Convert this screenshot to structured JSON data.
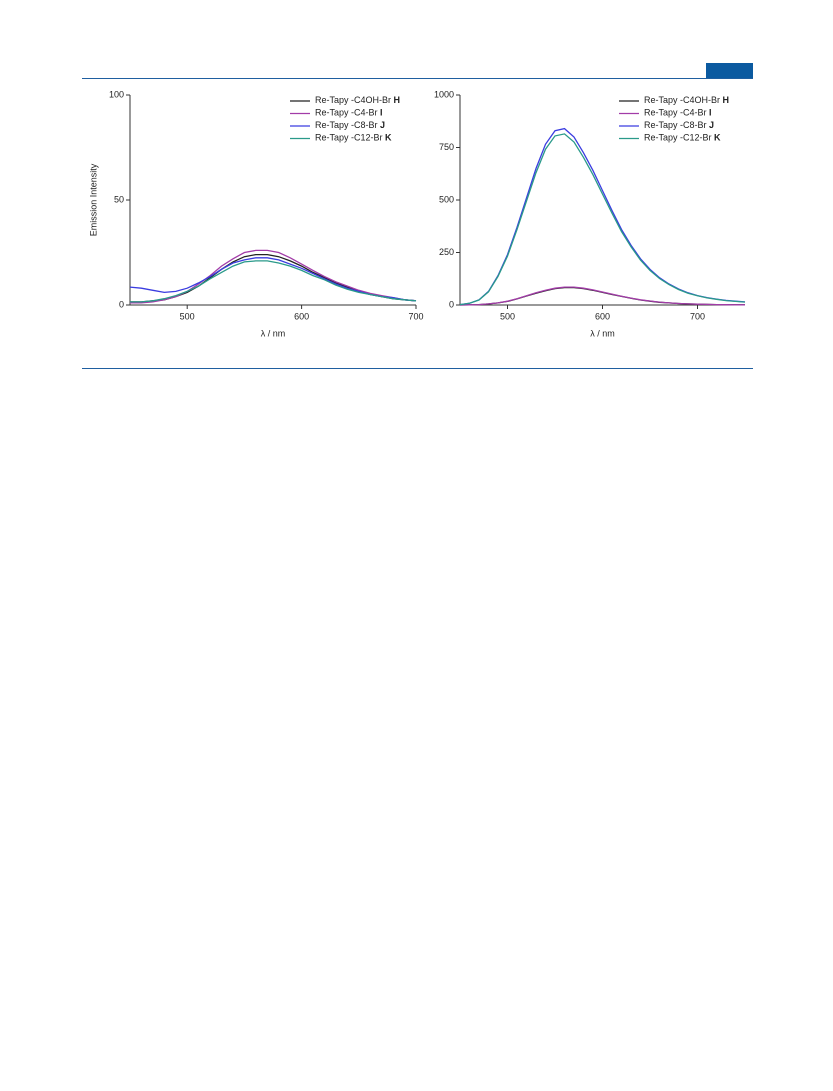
{
  "chart_data": [
    {
      "type": "line",
      "y_label": "Emission Intensity",
      "x_label": "λ / nm",
      "xlim": [
        450,
        700
      ],
      "ylim": [
        0,
        100
      ],
      "xticks": [
        500,
        600,
        700
      ],
      "yticks": [
        0,
        50,
        100
      ],
      "legend": "upper right",
      "x": [
        450,
        460,
        470,
        480,
        490,
        500,
        510,
        520,
        530,
        540,
        550,
        560,
        570,
        580,
        590,
        600,
        610,
        620,
        630,
        640,
        650,
        660,
        670,
        680,
        690,
        700
      ],
      "series": [
        {
          "name": "Re-Tapy -C4OH-Br H",
          "color": "#222222",
          "values": [
            1.5,
            1.5,
            2,
            2.5,
            4,
            6,
            9,
            13,
            17,
            20.5,
            23,
            24,
            24,
            23,
            21,
            18.5,
            15.5,
            13,
            10.5,
            8.5,
            6.5,
            5,
            4,
            3,
            2.5,
            2
          ]
        },
        {
          "name": "Re-Tapy -C4-Br I",
          "color": "#a23ca8",
          "values": [
            1,
            1,
            1.5,
            2.5,
            4,
            6.5,
            10,
            14,
            18.5,
            22,
            25,
            26,
            26,
            25,
            22.5,
            19.5,
            16.5,
            13.5,
            11,
            9,
            7,
            5.5,
            4.5,
            3.5,
            2.5,
            2
          ]
        },
        {
          "name": "Re-Tapy -C8-Br J",
          "color": "#3a3ce0",
          "values": [
            8.5,
            8,
            7,
            6,
            6.5,
            8,
            10.5,
            13.5,
            17,
            20,
            21.5,
            22.5,
            22.5,
            21.5,
            19.5,
            17.5,
            15,
            12.5,
            10,
            8,
            6.5,
            5,
            4,
            3.5,
            2.5,
            2
          ]
        },
        {
          "name": "Re-Tapy -C12-Br K",
          "color": "#2a9a8a",
          "values": [
            1.5,
            1.5,
            2,
            3,
            4.5,
            6.5,
            9,
            12.5,
            15.5,
            18.5,
            20.5,
            21,
            21,
            20,
            18.5,
            16.5,
            14,
            12,
            9.5,
            7.5,
            6,
            5,
            4,
            3,
            2.5,
            2
          ]
        }
      ]
    },
    {
      "type": "line",
      "x_label": "λ / nm",
      "xlim": [
        450,
        750
      ],
      "ylim": [
        0,
        1000
      ],
      "xticks": [
        500,
        600,
        700
      ],
      "yticks": [
        0,
        250,
        500,
        750,
        1000
      ],
      "legend": "upper right",
      "x": [
        450,
        460,
        470,
        480,
        490,
        500,
        510,
        520,
        530,
        540,
        550,
        560,
        570,
        580,
        590,
        600,
        610,
        620,
        630,
        640,
        650,
        660,
        670,
        680,
        690,
        700,
        710,
        720,
        730,
        740,
        750
      ],
      "series": [
        {
          "name": "Re-Tapy -C4OH-Br H",
          "color": "#222222",
          "values": [
            0,
            1,
            2,
            5,
            10,
            17,
            29,
            43,
            56,
            68,
            78,
            83,
            83,
            78,
            70,
            60,
            50,
            41,
            32,
            24,
            18,
            13,
            10,
            7,
            5,
            4,
            3,
            2,
            1.5,
            1,
            1
          ]
        },
        {
          "name": "Re-Tapy -C4-Br I",
          "color": "#a23ca8",
          "values": [
            0,
            1,
            2,
            5,
            10,
            18,
            30,
            44,
            58,
            70,
            80,
            85,
            85,
            80,
            72,
            62,
            52,
            42,
            33,
            25,
            19,
            14,
            10,
            7,
            5,
            4,
            3,
            2,
            1.5,
            1,
            1
          ]
        },
        {
          "name": "Re-Tapy -C8-Br J",
          "color": "#3a3ce0",
          "values": [
            2,
            8,
            25,
            65,
            140,
            240,
            370,
            510,
            650,
            765,
            830,
            840,
            800,
            725,
            640,
            545,
            450,
            360,
            285,
            220,
            170,
            130,
            100,
            76,
            58,
            45,
            35,
            28,
            22,
            18,
            15
          ]
        },
        {
          "name": "Re-Tapy -C12-Br K",
          "color": "#2a9a8a",
          "values": [
            2,
            8,
            24,
            63,
            136,
            233,
            359,
            495,
            630,
            742,
            805,
            815,
            776,
            703,
            620,
            528,
            437,
            350,
            277,
            214,
            165,
            126,
            97,
            74,
            56,
            44,
            34,
            27,
            21,
            17,
            14
          ]
        }
      ]
    }
  ]
}
